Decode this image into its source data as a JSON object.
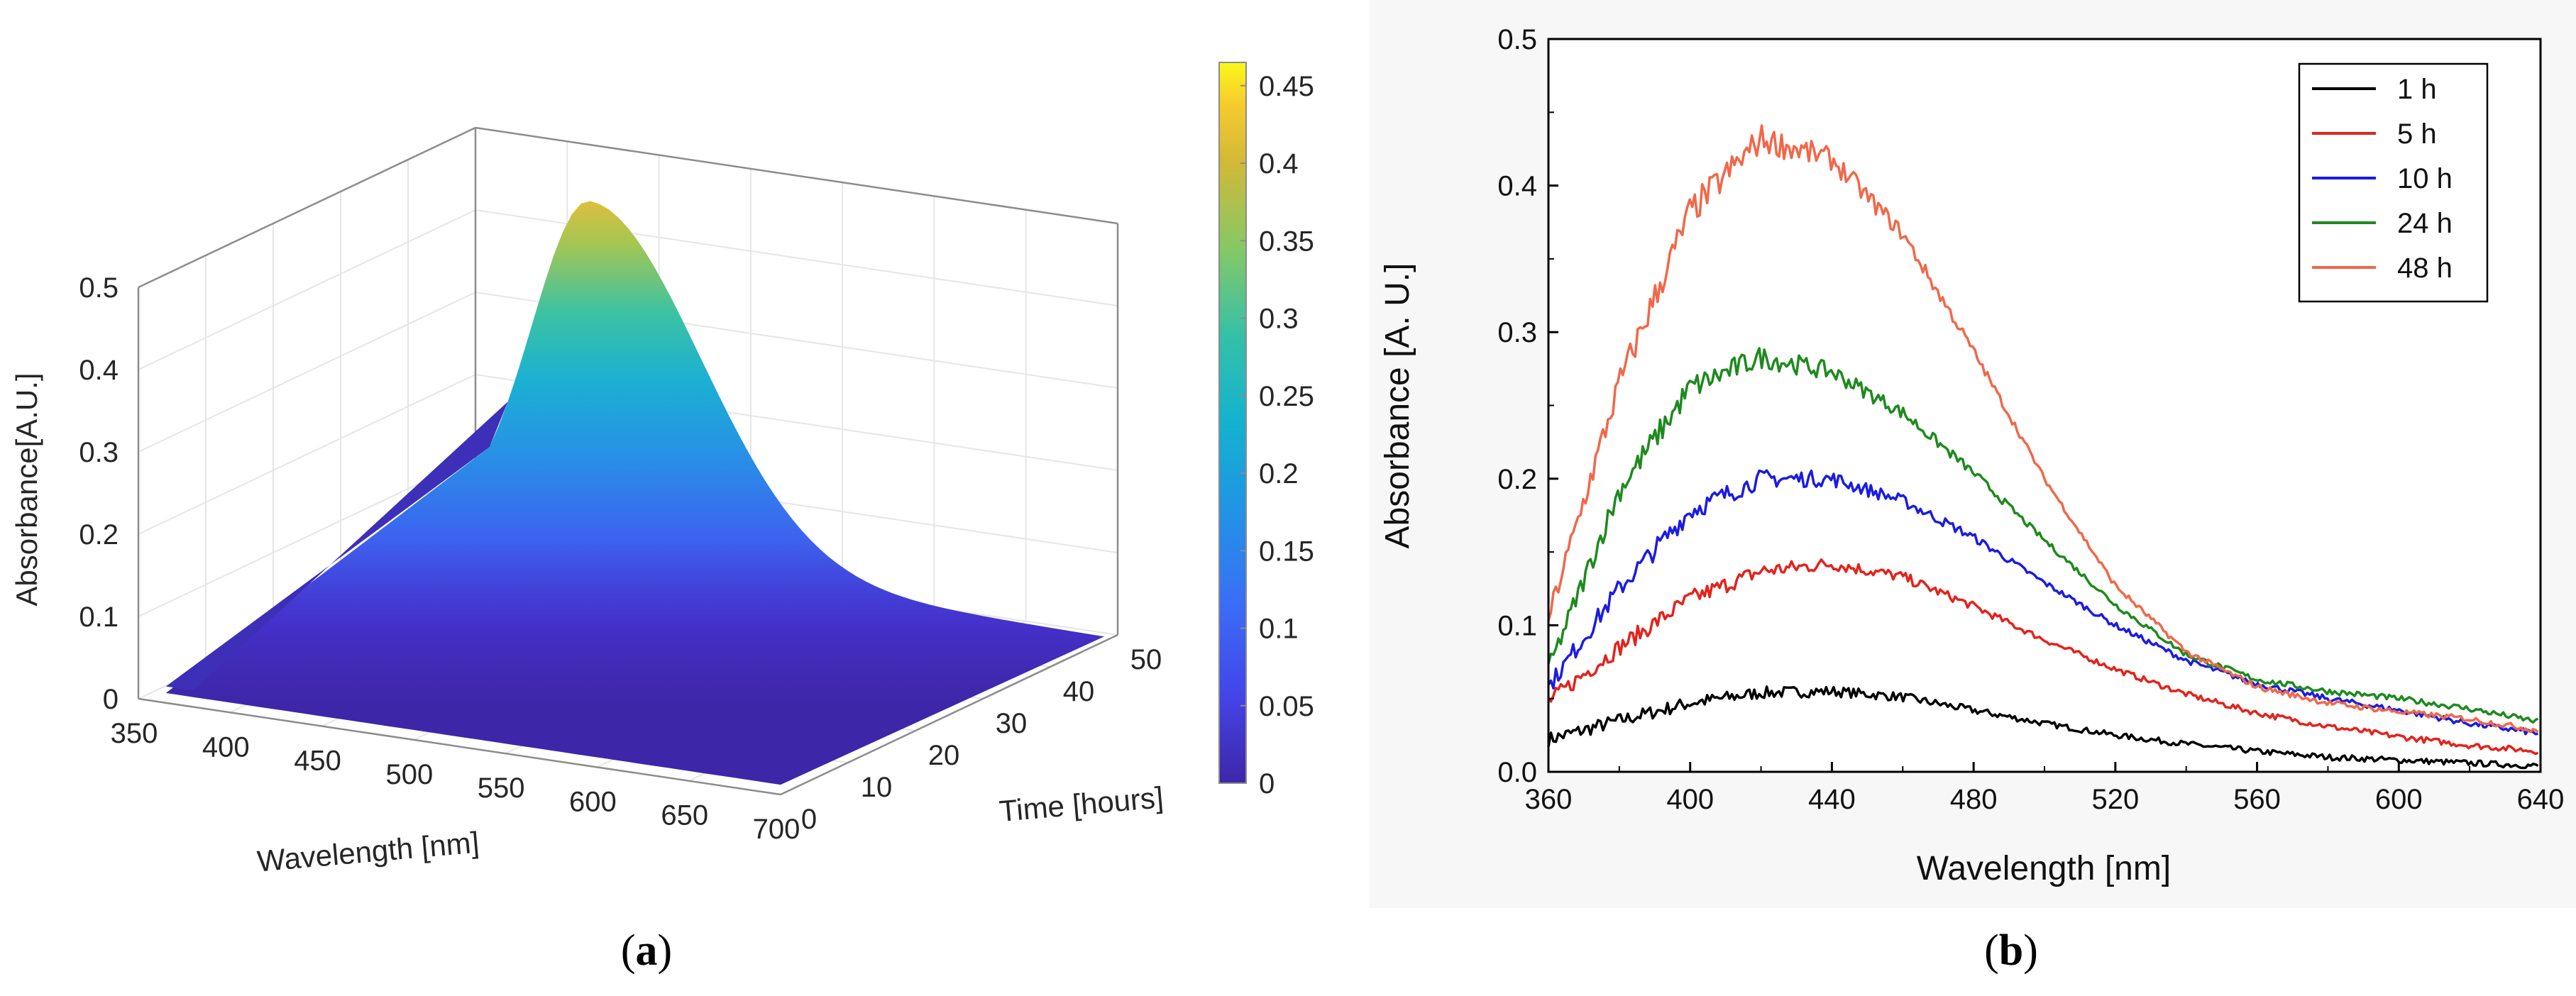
{
  "chart_data": [
    {
      "type": "surface",
      "panel_label": "a",
      "xlabel": "Wavelength [nm]",
      "ylabel": "Time [hours]",
      "zlabel": "Absorbance[A.U.]",
      "xlim": [
        350,
        700
      ],
      "ylim": [
        0,
        50
      ],
      "zlim": [
        0,
        0.5
      ],
      "x_ticks": [
        350,
        400,
        450,
        500,
        550,
        600,
        650,
        700
      ],
      "y_ticks": [
        0,
        10,
        20,
        30,
        40,
        50
      ],
      "z_ticks": [
        0,
        0.1,
        0.2,
        0.3,
        0.4,
        0.5
      ],
      "z_tick_labels": [
        "0",
        "0.1",
        "0.2",
        "0.3",
        "0.4",
        "0.5"
      ],
      "peak": {
        "wavelength": 420,
        "time": 48,
        "absorbance": 0.45
      },
      "colorbar": {
        "colormap": "parula",
        "ticks": [
          0,
          0.05,
          0.1,
          0.15,
          0.2,
          0.25,
          0.3,
          0.35,
          0.4,
          0.45
        ],
        "tick_labels": [
          "0",
          "0.05",
          "0.1",
          "0.15",
          "0.2",
          "0.25",
          "0.3",
          "0.35",
          "0.4",
          "0.45"
        ],
        "range": [
          0,
          0.465
        ]
      },
      "grid": true
    },
    {
      "type": "line",
      "panel_label": "b",
      "xlabel": "Wavelength [nm]",
      "ylabel": "Absorbance [A. U.]",
      "xlim": [
        360,
        640
      ],
      "ylim": [
        0,
        0.5
      ],
      "x_ticks": [
        360,
        400,
        440,
        480,
        520,
        560,
        600,
        640
      ],
      "y_ticks": [
        0,
        0.1,
        0.2,
        0.3,
        0.4,
        0.5
      ],
      "y_tick_labels": [
        "0.0",
        "0.1",
        "0.2",
        "0.3",
        "0.4",
        "0.5"
      ],
      "legend_position": "top-right",
      "x": [
        360,
        380,
        400,
        420,
        440,
        460,
        480,
        500,
        520,
        540,
        560,
        580,
        600,
        620,
        640
      ],
      "series": [
        {
          "name": "1 h",
          "color": "#000000",
          "values": [
            0.022,
            0.035,
            0.047,
            0.054,
            0.055,
            0.051,
            0.042,
            0.033,
            0.025,
            0.019,
            0.014,
            0.01,
            0.008,
            0.006,
            0.004
          ]
        },
        {
          "name": "5 h",
          "color": "#e3231d",
          "values": [
            0.048,
            0.085,
            0.118,
            0.137,
            0.142,
            0.133,
            0.113,
            0.09,
            0.07,
            0.053,
            0.04,
            0.031,
            0.024,
            0.018,
            0.014
          ]
        },
        {
          "name": "10 h",
          "color": "#1c1ce0",
          "values": [
            0.058,
            0.125,
            0.178,
            0.2,
            0.2,
            0.185,
            0.16,
            0.129,
            0.1,
            0.076,
            0.06,
            0.05,
            0.042,
            0.033,
            0.026
          ]
        },
        {
          "name": "24 h",
          "color": "#1e8a1e",
          "values": [
            0.07,
            0.192,
            0.262,
            0.283,
            0.273,
            0.245,
            0.204,
            0.158,
            0.114,
            0.08,
            0.063,
            0.055,
            0.05,
            0.043,
            0.034
          ]
        },
        {
          "name": "48 h",
          "color": "#f0684a",
          "values": [
            0.105,
            0.265,
            0.382,
            0.432,
            0.418,
            0.367,
            0.287,
            0.2,
            0.127,
            0.082,
            0.058,
            0.047,
            0.041,
            0.036,
            0.028
          ]
        }
      ],
      "grid": false
    }
  ]
}
